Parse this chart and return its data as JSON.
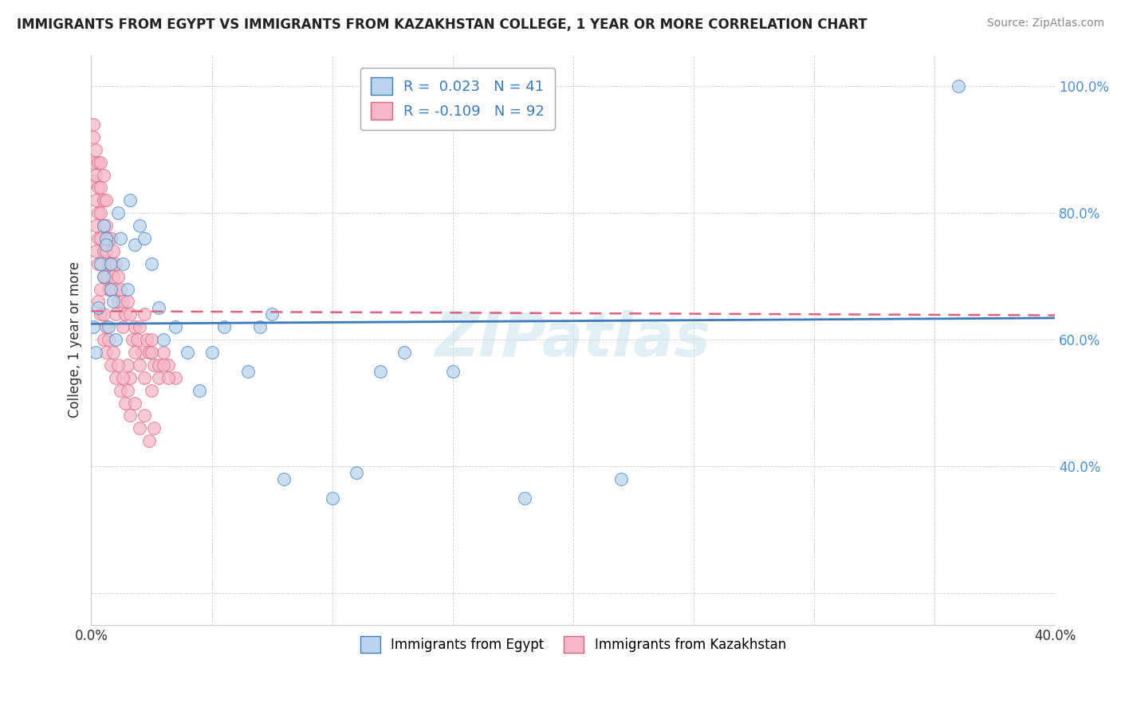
{
  "title": "IMMIGRANTS FROM EGYPT VS IMMIGRANTS FROM KAZAKHSTAN COLLEGE, 1 YEAR OR MORE CORRELATION CHART",
  "source": "Source: ZipAtlas.com",
  "ylabel": "College, 1 year or more",
  "xmin": 0.0,
  "xmax": 0.4,
  "ymin": 0.15,
  "ymax": 1.05,
  "x_ticks": [
    0.0,
    0.05,
    0.1,
    0.15,
    0.2,
    0.25,
    0.3,
    0.35,
    0.4
  ],
  "y_ticks": [
    0.2,
    0.4,
    0.6,
    0.8,
    1.0
  ],
  "color_egypt": "#b8d4ed",
  "color_kazakhstan": "#f4b8c8",
  "trendline_egypt_color": "#3a7abf",
  "trendline_kazakhstan_color": "#e06080",
  "watermark": "ZIPatlas",
  "legend_r_egypt": "R =  0.023",
  "legend_n_egypt": "N = 41",
  "legend_r_kazakhstan": "R = -0.109",
  "legend_n_kazakhstan": "N = 92",
  "egypt_x": [
    0.001,
    0.002,
    0.003,
    0.004,
    0.005,
    0.005,
    0.006,
    0.006,
    0.007,
    0.008,
    0.008,
    0.009,
    0.01,
    0.011,
    0.012,
    0.013,
    0.015,
    0.016,
    0.018,
    0.02,
    0.022,
    0.025,
    0.028,
    0.03,
    0.035,
    0.04,
    0.045,
    0.05,
    0.055,
    0.065,
    0.07,
    0.075,
    0.08,
    0.1,
    0.11,
    0.12,
    0.13,
    0.15,
    0.18,
    0.22,
    0.36
  ],
  "egypt_y": [
    0.62,
    0.58,
    0.65,
    0.72,
    0.78,
    0.7,
    0.76,
    0.75,
    0.62,
    0.68,
    0.72,
    0.66,
    0.6,
    0.8,
    0.76,
    0.72,
    0.68,
    0.82,
    0.75,
    0.78,
    0.76,
    0.72,
    0.65,
    0.6,
    0.62,
    0.58,
    0.52,
    0.58,
    0.62,
    0.55,
    0.62,
    0.64,
    0.38,
    0.35,
    0.39,
    0.55,
    0.58,
    0.55,
    0.35,
    0.38,
    1.0
  ],
  "kazakhstan_x": [
    0.001,
    0.001,
    0.001,
    0.001,
    0.002,
    0.002,
    0.002,
    0.002,
    0.002,
    0.003,
    0.003,
    0.003,
    0.003,
    0.003,
    0.004,
    0.004,
    0.004,
    0.004,
    0.005,
    0.005,
    0.005,
    0.005,
    0.005,
    0.006,
    0.006,
    0.006,
    0.006,
    0.007,
    0.007,
    0.007,
    0.008,
    0.008,
    0.008,
    0.009,
    0.009,
    0.01,
    0.01,
    0.01,
    0.011,
    0.011,
    0.012,
    0.013,
    0.013,
    0.014,
    0.015,
    0.016,
    0.017,
    0.018,
    0.019,
    0.02,
    0.021,
    0.022,
    0.023,
    0.024,
    0.025,
    0.026,
    0.028,
    0.03,
    0.032,
    0.035,
    0.015,
    0.016,
    0.018,
    0.02,
    0.022,
    0.025,
    0.025,
    0.028,
    0.03,
    0.032,
    0.003,
    0.004,
    0.004,
    0.005,
    0.005,
    0.006,
    0.006,
    0.007,
    0.008,
    0.009,
    0.01,
    0.011,
    0.012,
    0.013,
    0.014,
    0.015,
    0.016,
    0.018,
    0.02,
    0.022,
    0.024,
    0.026
  ],
  "kazakhstan_y": [
    0.94,
    0.92,
    0.88,
    0.85,
    0.9,
    0.86,
    0.82,
    0.78,
    0.74,
    0.88,
    0.84,
    0.8,
    0.76,
    0.72,
    0.88,
    0.84,
    0.8,
    0.76,
    0.86,
    0.82,
    0.78,
    0.74,
    0.7,
    0.82,
    0.78,
    0.74,
    0.7,
    0.76,
    0.72,
    0.68,
    0.76,
    0.72,
    0.68,
    0.74,
    0.7,
    0.72,
    0.68,
    0.64,
    0.7,
    0.66,
    0.68,
    0.66,
    0.62,
    0.64,
    0.66,
    0.64,
    0.6,
    0.62,
    0.6,
    0.62,
    0.58,
    0.64,
    0.6,
    0.58,
    0.6,
    0.56,
    0.56,
    0.58,
    0.56,
    0.54,
    0.56,
    0.54,
    0.58,
    0.56,
    0.54,
    0.52,
    0.58,
    0.54,
    0.56,
    0.54,
    0.66,
    0.64,
    0.68,
    0.64,
    0.6,
    0.62,
    0.58,
    0.6,
    0.56,
    0.58,
    0.54,
    0.56,
    0.52,
    0.54,
    0.5,
    0.52,
    0.48,
    0.5,
    0.46,
    0.48,
    0.44,
    0.46
  ]
}
